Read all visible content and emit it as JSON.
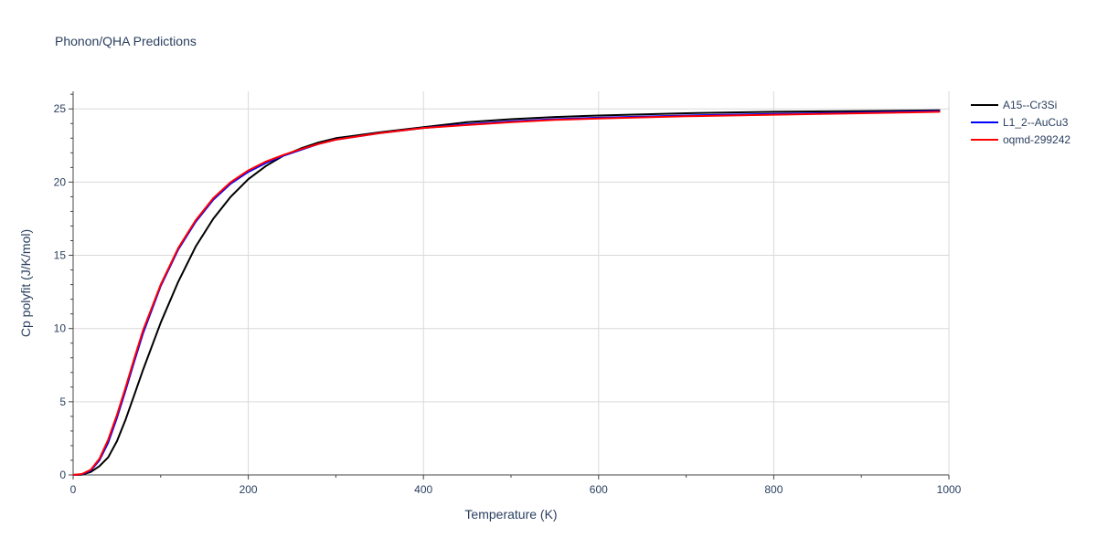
{
  "chart_data": {
    "type": "line",
    "title": "Phonon/QHA Predictions",
    "xlabel": "Temperature (K)",
    "ylabel": "Cp polyfit (J/K/mol)",
    "xlim": [
      0,
      1000
    ],
    "ylim": [
      0,
      26.2
    ],
    "xticks": [
      0,
      200,
      400,
      600,
      800,
      1000
    ],
    "yticks": [
      0,
      5,
      10,
      15,
      20,
      25
    ],
    "grid": true,
    "legend_position": "top-right outside",
    "series": [
      {
        "name": "A15--Cr3Si",
        "color": "#000000",
        "x": [
          0,
          10,
          20,
          30,
          40,
          50,
          60,
          70,
          80,
          100,
          120,
          140,
          160,
          180,
          200,
          220,
          240,
          260,
          280,
          300,
          350,
          400,
          450,
          500,
          550,
          600,
          700,
          800,
          900,
          990
        ],
        "y": [
          0,
          0.02,
          0.2,
          0.6,
          1.2,
          2.3,
          3.8,
          5.5,
          7.2,
          10.4,
          13.2,
          15.6,
          17.5,
          19.0,
          20.2,
          21.1,
          21.8,
          22.3,
          22.7,
          23.0,
          23.4,
          23.75,
          24.1,
          24.3,
          24.45,
          24.55,
          24.7,
          24.8,
          24.85,
          24.9
        ]
      },
      {
        "name": "L1_2--AuCu3",
        "color": "#0000ff",
        "x": [
          0,
          10,
          20,
          30,
          40,
          50,
          60,
          70,
          80,
          100,
          120,
          140,
          160,
          180,
          200,
          220,
          240,
          260,
          280,
          300,
          350,
          400,
          450,
          500,
          550,
          600,
          700,
          800,
          900,
          990
        ],
        "y": [
          0,
          0.05,
          0.3,
          1.0,
          2.2,
          3.9,
          5.8,
          7.8,
          9.7,
          12.9,
          15.4,
          17.3,
          18.8,
          19.9,
          20.7,
          21.3,
          21.8,
          22.2,
          22.6,
          22.9,
          23.35,
          23.7,
          23.95,
          24.15,
          24.3,
          24.4,
          24.55,
          24.65,
          24.75,
          24.85
        ]
      },
      {
        "name": "oqmd-299242",
        "color": "#ff0000",
        "x": [
          0,
          10,
          20,
          30,
          40,
          50,
          60,
          70,
          80,
          100,
          120,
          140,
          160,
          180,
          200,
          220,
          240,
          260,
          280,
          300,
          350,
          400,
          450,
          500,
          550,
          600,
          700,
          800,
          900,
          990
        ],
        "y": [
          0,
          0.06,
          0.35,
          1.1,
          2.4,
          4.1,
          6.0,
          8.0,
          9.9,
          13.0,
          15.5,
          17.4,
          18.9,
          20.0,
          20.8,
          21.4,
          21.85,
          22.25,
          22.6,
          22.9,
          23.35,
          23.7,
          23.9,
          24.1,
          24.25,
          24.35,
          24.5,
          24.6,
          24.7,
          24.8
        ]
      }
    ]
  }
}
